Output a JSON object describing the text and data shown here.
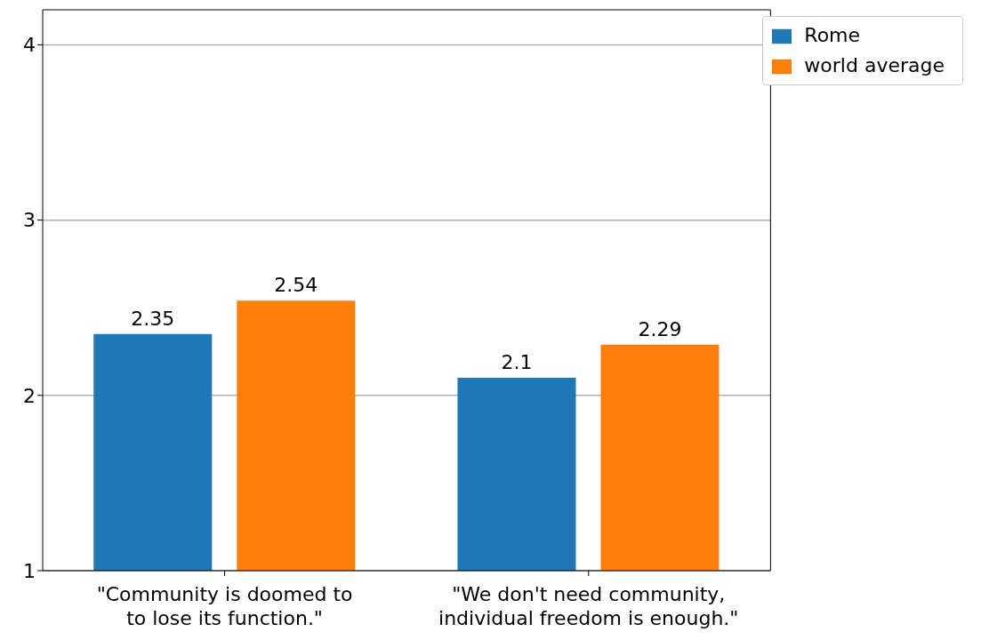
{
  "chart_data": {
    "type": "bar",
    "categories": [
      "\"Community is doomed to\nto lose its function.\"",
      "\"We don't need community,\nindividual freedom is enough.\""
    ],
    "series": [
      {
        "name": "Rome",
        "color": "#1f77b4",
        "values": [
          2.35,
          2.1
        ]
      },
      {
        "name": "world average",
        "color": "#ff7f0e",
        "values": [
          2.54,
          2.29
        ]
      }
    ],
    "ylim": [
      1,
      4.2
    ],
    "yticks": [
      1,
      2,
      3,
      4
    ],
    "grid": "y",
    "legend": "top right",
    "data_labels": true
  }
}
